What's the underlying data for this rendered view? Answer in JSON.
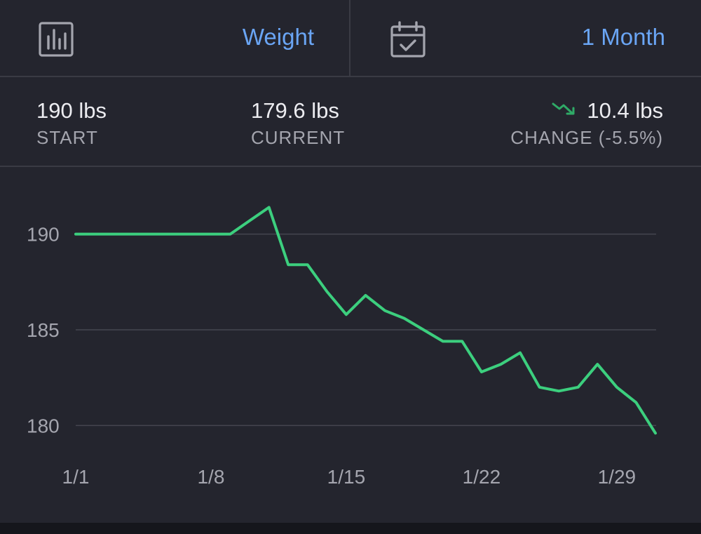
{
  "header": {
    "metric_icon": "bar-chart-icon",
    "metric_label": "Weight",
    "range_icon": "calendar-check-icon",
    "range_label": "1 Month"
  },
  "stats": {
    "start_value": "190 lbs",
    "start_label": "START",
    "current_value": "179.6 lbs",
    "current_label": "CURRENT",
    "change_icon": "trend-down-icon",
    "change_value": "10.4 lbs",
    "change_label": "CHANGE (-5.5%)"
  },
  "colors": {
    "accent": "#6aa5f4",
    "line": "#3ccf7e",
    "trend_down": "#2faa67",
    "background": "#24252e"
  },
  "chart_data": {
    "type": "line",
    "x": [
      1,
      2,
      3,
      4,
      5,
      6,
      7,
      8,
      9,
      10,
      11,
      12,
      13,
      14,
      15,
      16,
      17,
      18,
      19,
      20,
      21,
      22,
      23,
      24,
      25,
      26,
      27,
      28,
      29,
      30,
      31
    ],
    "values": [
      190,
      190,
      190,
      190,
      190,
      190,
      190,
      190,
      190,
      190.7,
      191.4,
      188.4,
      188.4,
      187.0,
      185.8,
      186.8,
      186.0,
      185.6,
      185.0,
      184.4,
      184.4,
      182.8,
      183.2,
      183.8,
      182.0,
      181.8,
      182.0,
      183.2,
      182.0,
      181.2,
      179.6
    ],
    "xticks": [
      1,
      8,
      15,
      22,
      29
    ],
    "xtick_labels": [
      "1/1",
      "1/8",
      "1/15",
      "1/22",
      "1/29"
    ],
    "yticks": [
      180,
      185,
      190
    ],
    "ytick_labels": [
      "180",
      "185",
      "190"
    ],
    "ylim": [
      178.4,
      192.7
    ],
    "xlim": [
      1,
      31
    ],
    "grid": true
  }
}
